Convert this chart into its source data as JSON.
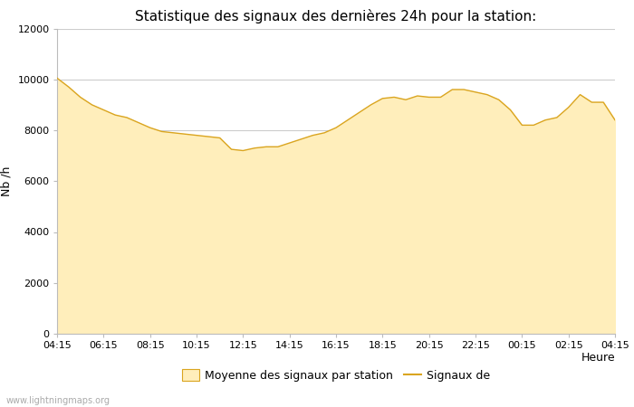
{
  "title": "Statistique des signaux des dernières 24h pour la station:",
  "xlabel": "Heure",
  "ylabel": "Nb /h",
  "xlim_labels": [
    "04:15",
    "06:15",
    "08:15",
    "10:15",
    "12:15",
    "14:15",
    "16:15",
    "18:15",
    "20:15",
    "22:15",
    "00:15",
    "02:15",
    "04:15"
  ],
  "ylim": [
    0,
    12000
  ],
  "yticks": [
    0,
    2000,
    4000,
    6000,
    8000,
    10000,
    12000
  ],
  "fill_color": "#FFEEBB",
  "line_color": "#DAA520",
  "background_color": "#ffffff",
  "plot_bg_color": "#ffffff",
  "grid_color": "#cccccc",
  "watermark": "www.lightningmaps.org",
  "legend_labels": [
    "Moyenne des signaux par station",
    "Signaux de"
  ],
  "x_values": [
    0,
    1,
    2,
    3,
    4,
    5,
    6,
    7,
    8,
    9,
    10,
    11,
    12,
    13,
    14,
    15,
    16,
    17,
    18,
    19,
    20,
    21,
    22,
    23,
    24,
    25,
    26,
    27,
    28,
    29,
    30,
    31,
    32,
    33,
    34,
    35,
    36,
    37,
    38,
    39,
    40,
    41,
    42,
    43,
    44,
    45,
    46,
    47,
    48
  ],
  "y_values": [
    10050,
    9700,
    9300,
    9000,
    8800,
    8600,
    8500,
    8300,
    8100,
    7950,
    7900,
    7850,
    7800,
    7750,
    7700,
    7250,
    7200,
    7300,
    7350,
    7350,
    7500,
    7650,
    7800,
    7900,
    8100,
    8400,
    8700,
    9000,
    9250,
    9300,
    9200,
    9350,
    9300,
    9300,
    9600,
    9600,
    9500,
    9400,
    9200,
    8800,
    8200,
    8200,
    8400,
    8500,
    8900,
    9400,
    9100,
    9100,
    8400
  ],
  "title_fontsize": 11,
  "axis_fontsize": 9,
  "tick_fontsize": 8,
  "legend_fontsize": 9,
  "watermark_fontsize": 7
}
